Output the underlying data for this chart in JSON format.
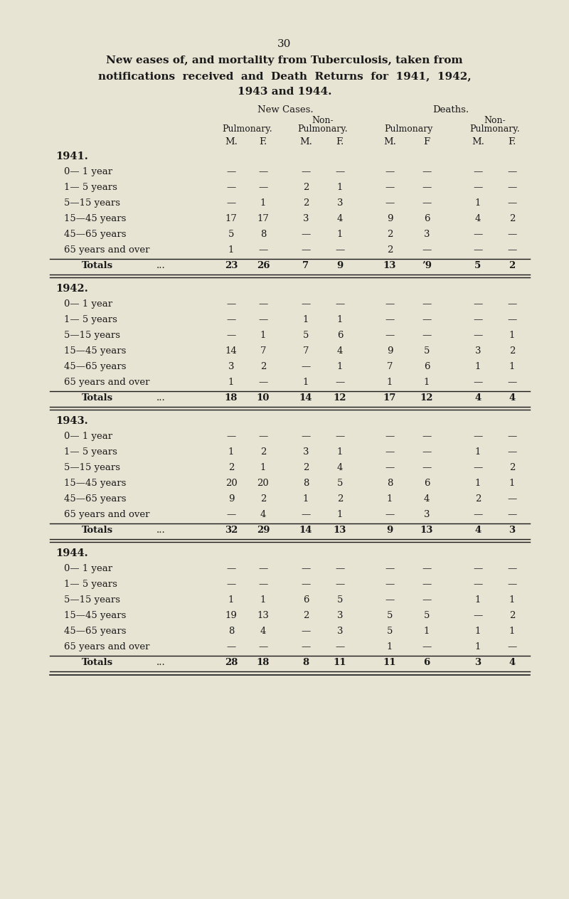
{
  "page_number": "30",
  "title_line1": "New eases of, and mortality from Tuberculosis, taken from",
  "title_line2": "notifications  received  and  Death  Returns  for  1941,  1942,",
  "title_line3": "1943 and 1944.",
  "bg_color": "#e8e4d4",
  "text_color": "#1a1a1a",
  "col_headers": [
    "M.",
    "F.",
    "M.",
    "F.",
    "M.",
    "F",
    "M.",
    "F."
  ],
  "years": [
    "1941",
    "1942",
    "1943",
    "1944"
  ],
  "age_keys": [
    "0-1",
    "1-5",
    "5-15",
    "15-45",
    "45-65",
    "65+",
    "totals"
  ],
  "age_labels": [
    "0— 1 year",
    "1— 5 years",
    "5—15 years",
    "15—45 years",
    "45—65 years",
    "65 years and over",
    "Totals"
  ],
  "data": {
    "1941": {
      "0-1": [
        "—",
        "—",
        "—",
        "—",
        "—",
        "—",
        "—",
        "—"
      ],
      "1-5": [
        "—",
        "—",
        "2",
        "1",
        "—",
        "—",
        "—",
        "—"
      ],
      "5-15": [
        "—",
        "1",
        "2",
        "3",
        "—",
        "—",
        "1",
        "—"
      ],
      "15-45": [
        "17",
        "17",
        "3",
        "4",
        "9",
        "6",
        "4",
        "2"
      ],
      "45-65": [
        "5",
        "8",
        "—",
        "1",
        "2",
        "3",
        "—",
        "—"
      ],
      "65+": [
        "1",
        "—",
        "—",
        "—",
        "2",
        "—",
        "—",
        "—"
      ],
      "totals": [
        "23",
        "26",
        "7",
        "9",
        "13",
        "’9",
        "5",
        "2"
      ]
    },
    "1942": {
      "0-1": [
        "—",
        "—",
        "—",
        "—",
        "—",
        "—",
        "—",
        "—"
      ],
      "1-5": [
        "—",
        "—",
        "1",
        "1",
        "—",
        "—",
        "—",
        "—"
      ],
      "5-15": [
        "—",
        "1",
        "5",
        "6",
        "—",
        "—",
        "—",
        "1"
      ],
      "15-45": [
        "14",
        "7",
        "7",
        "4",
        "9",
        "5",
        "3",
        "2"
      ],
      "45-65": [
        "3",
        "2",
        "—",
        "1",
        "7",
        "6",
        "1",
        "1"
      ],
      "65+": [
        "1",
        "—",
        "1",
        "—",
        "1",
        "1",
        "—",
        "—"
      ],
      "totals": [
        "18",
        "10",
        "14",
        "12",
        "17",
        "12",
        "4",
        "4"
      ]
    },
    "1943": {
      "0-1": [
        "—",
        "—",
        "—",
        "—",
        "—",
        "—",
        "—",
        "—"
      ],
      "1-5": [
        "1",
        "2",
        "3",
        "1",
        "—",
        "—",
        "1",
        "—"
      ],
      "5-15": [
        "2",
        "1",
        "2",
        "4",
        "—",
        "—",
        "—",
        "2"
      ],
      "15-45": [
        "20",
        "20",
        "8",
        "5",
        "8",
        "6",
        "1",
        "1"
      ],
      "45-65": [
        "9",
        "2",
        "1",
        "2",
        "1",
        "4",
        "2",
        "—"
      ],
      "65+": [
        "—",
        "4",
        "—",
        "1",
        "—",
        "3",
        "—",
        "—"
      ],
      "totals": [
        "32",
        "29",
        "14",
        "13",
        "9",
        "13",
        "4",
        "3"
      ]
    },
    "1944": {
      "0-1": [
        "—",
        "—",
        "—",
        "—",
        "—",
        "—",
        "—",
        "—"
      ],
      "1-5": [
        "—",
        "—",
        "—",
        "—",
        "—",
        "—",
        "—",
        "—"
      ],
      "5-15": [
        "1",
        "1",
        "6",
        "5",
        "—",
        "—",
        "1",
        "1"
      ],
      "15-45": [
        "19",
        "13",
        "2",
        "3",
        "5",
        "5",
        "—",
        "2"
      ],
      "45-65": [
        "8",
        "4",
        "—",
        "3",
        "5",
        "1",
        "1",
        "1"
      ],
      "65+": [
        "—",
        "—",
        "—",
        "—",
        "1",
        "—",
        "1",
        "—"
      ],
      "totals": [
        "28",
        "18",
        "8",
        "11",
        "11",
        "6",
        "3",
        "4"
      ]
    }
  }
}
